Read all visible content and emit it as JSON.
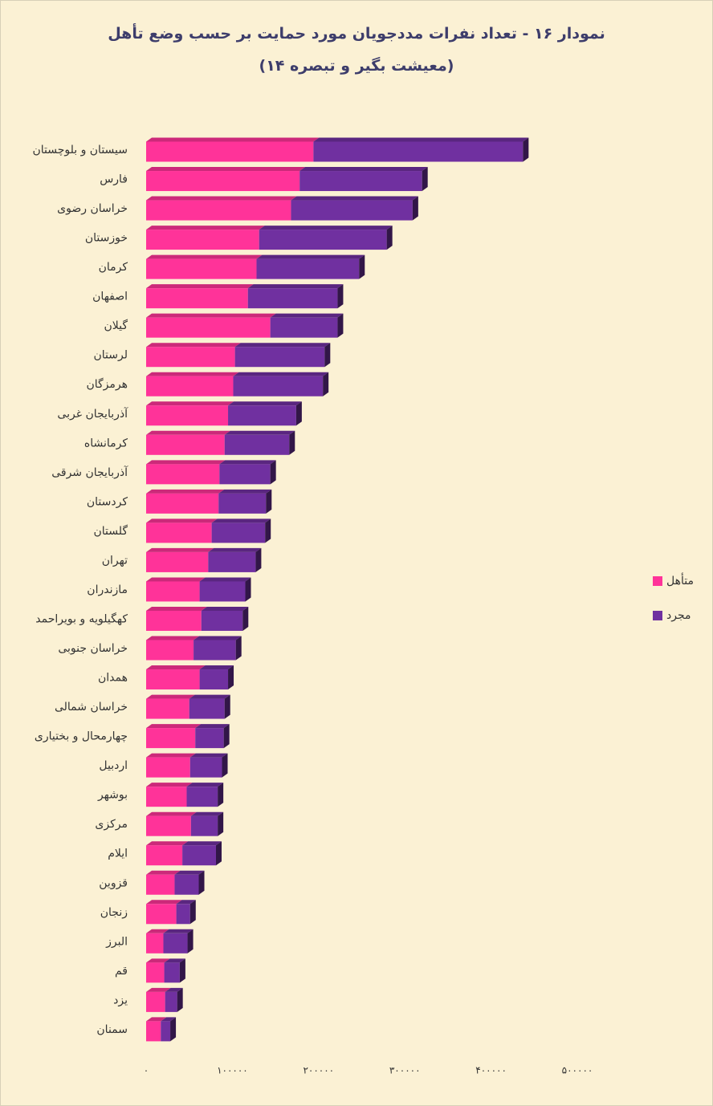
{
  "chart_data": {
    "type": "bar",
    "orientation": "horizontal",
    "stacked": true,
    "title": "نمودار ۱۶ - تعداد نفرات مددجویان مورد حمایت بر حسب وضع تأهل",
    "subtitle": "(معیشت بگیر و تبصره ۱۴)",
    "categories": [
      "سیستان و بلوچستان",
      "فارس",
      "خراسان رضوی",
      "خوزستان",
      "کرمان",
      "اصفهان",
      "گیلان",
      "لرستان",
      "هرمزگان",
      "آذربایجان غربی",
      "کرمانشاه",
      "آذربایجان شرقی",
      "کردستان",
      "گلستان",
      "تهران",
      "مازندران",
      "کهگیلویه و بویراحمد",
      "خراسان جنوبی",
      "همدان",
      "خراسان شمالی",
      "چهارمحال و بختیاری",
      "اردبیل",
      "بوشهر",
      "مرکزی",
      "ایلام",
      "قزوین",
      "زنجان",
      "البرز",
      "قم",
      "یزد",
      "سمنان"
    ],
    "series": [
      {
        "name": "متأهل",
        "color": "#ff3399",
        "values": [
          194000,
          178000,
          168000,
          131000,
          128000,
          118000,
          144000,
          103000,
          101000,
          95000,
          91000,
          85000,
          84000,
          76000,
          72000,
          62000,
          64000,
          55000,
          62000,
          50000,
          57000,
          51000,
          47000,
          52000,
          42000,
          33000,
          35000,
          20000,
          21000,
          22000,
          17000
        ]
      },
      {
        "name": "مجرد",
        "color": "#7030a0",
        "values": [
          243000,
          142000,
          141000,
          148000,
          119000,
          104000,
          78000,
          104000,
          104000,
          79000,
          75000,
          59000,
          55000,
          62000,
          55000,
          53000,
          48000,
          49000,
          33000,
          41000,
          33000,
          37000,
          36000,
          31000,
          39000,
          28000,
          16000,
          28000,
          18000,
          14000,
          11000
        ]
      }
    ],
    "xlim": [
      0,
      500000
    ],
    "xticks": [
      {
        "value": 0,
        "label": "۰"
      },
      {
        "value": 100000,
        "label": "۱۰۰۰۰۰"
      },
      {
        "value": 200000,
        "label": "۲۰۰۰۰۰"
      },
      {
        "value": 300000,
        "label": "۳۰۰۰۰۰"
      },
      {
        "value": 400000,
        "label": "۴۰۰۰۰۰"
      },
      {
        "value": 500000,
        "label": "۵۰۰۰۰۰"
      }
    ],
    "legend": "right"
  }
}
